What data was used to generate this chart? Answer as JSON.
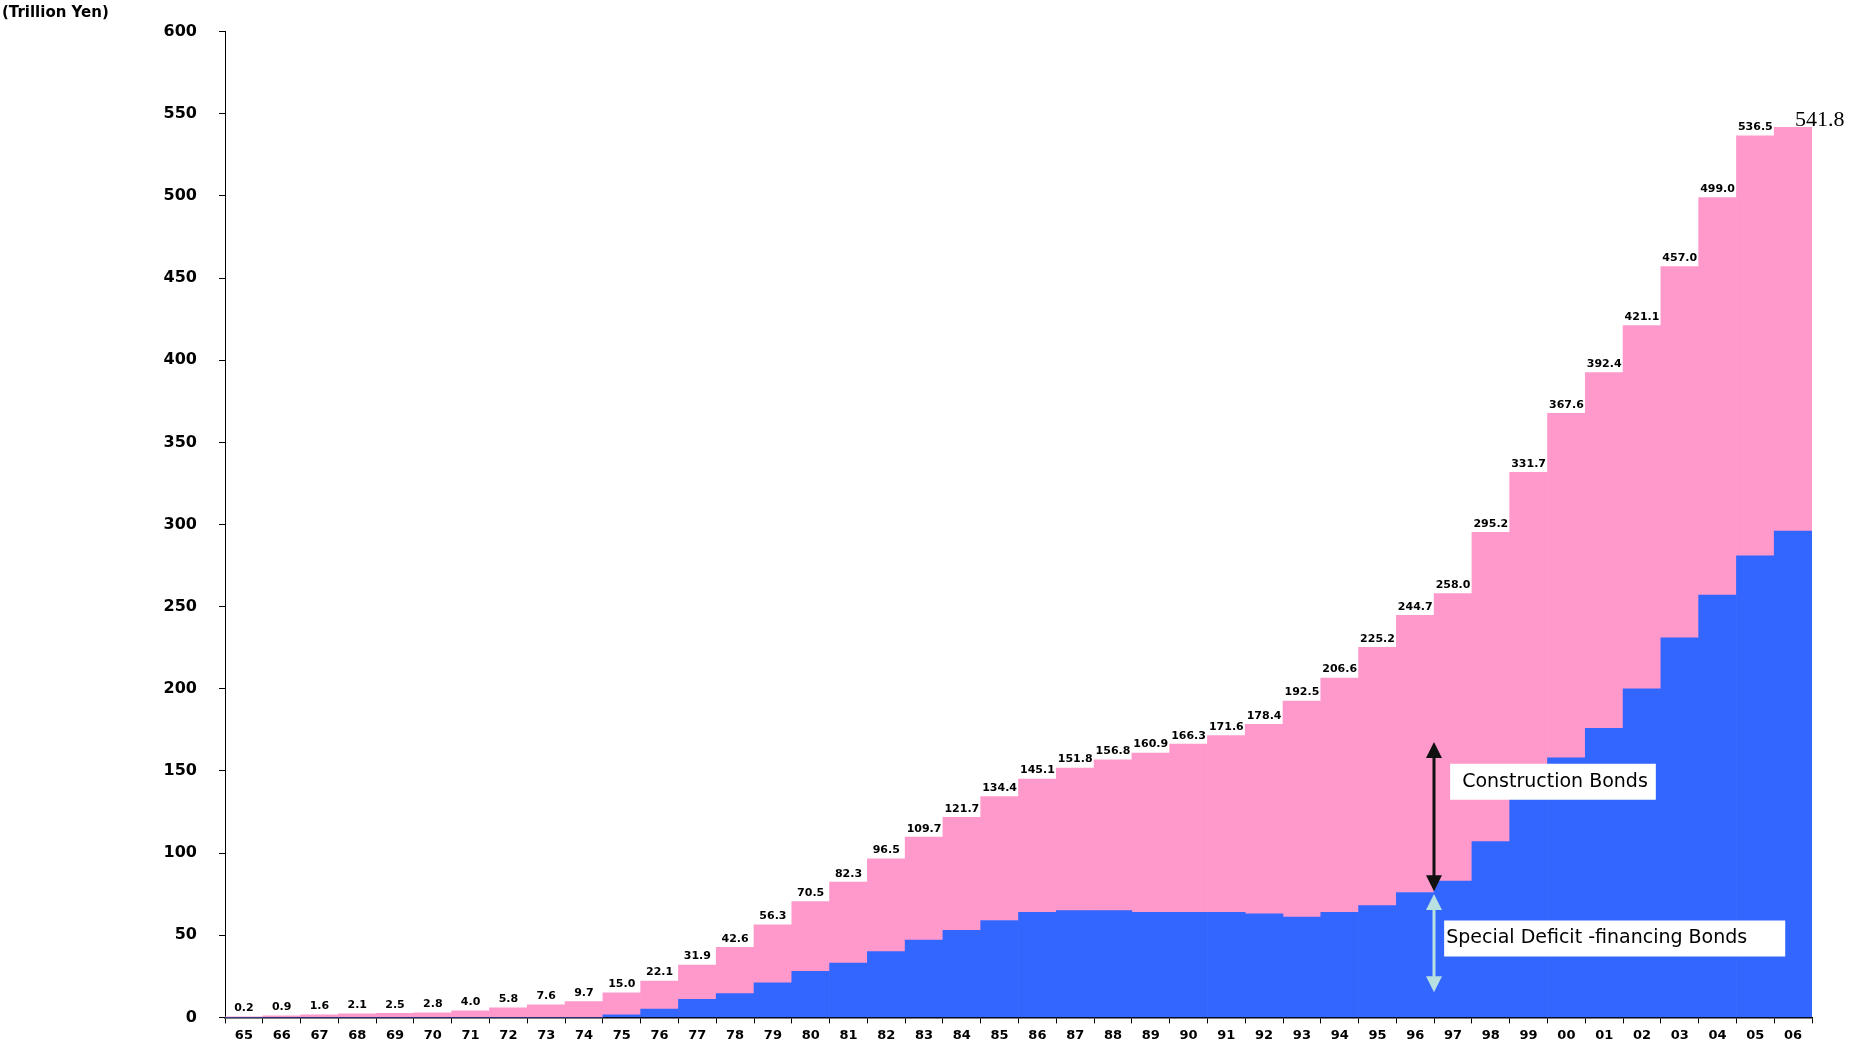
{
  "chart_data": {
    "type": "bar",
    "stacked": true,
    "ylabel": "(Trillion Yen)",
    "categories": [
      "65",
      "66",
      "67",
      "68",
      "69",
      "70",
      "71",
      "72",
      "73",
      "74",
      "75",
      "76",
      "77",
      "78",
      "79",
      "80",
      "81",
      "82",
      "83",
      "84",
      "85",
      "86",
      "87",
      "88",
      "89",
      "90",
      "91",
      "92",
      "93",
      "94",
      "95",
      "96",
      "97",
      "98",
      "99",
      "00",
      "01",
      "02",
      "03",
      "04",
      "05",
      "06"
    ],
    "series": [
      {
        "name": "Special Deficit -financing Bonds",
        "color": "#3366ff",
        "values": [
          0,
          0,
          0,
          0,
          0,
          0,
          0,
          0,
          0,
          0,
          1.5,
          5,
          11,
          14.5,
          21,
          28,
          33,
          40,
          47,
          53,
          59,
          64,
          65,
          65,
          64,
          64,
          64,
          63,
          61,
          64,
          68,
          76,
          83,
          107,
          133,
          158,
          176,
          200,
          231,
          257,
          281,
          296
        ]
      },
      {
        "name": "Construction Bonds",
        "color": "#ff99cc",
        "values": [
          0.2,
          0.9,
          1.6,
          2.1,
          2.5,
          2.8,
          4.0,
          5.8,
          7.6,
          9.7,
          13.5,
          17.1,
          20.9,
          28.1,
          35.3,
          42.5,
          49.3,
          56.5,
          62.7,
          68.7,
          75.4,
          81.1,
          86.8,
          91.8,
          96.9,
          102.3,
          107.6,
          115.4,
          131.5,
          142.6,
          157.2,
          168.7,
          175.0,
          188.2,
          198.7,
          209.6,
          216.4,
          221.1,
          226.0,
          242.0,
          255.5,
          245.8
        ]
      }
    ],
    "totals": [
      "0.2",
      "0.9",
      "1.6",
      "2.1",
      "2.5",
      "2.8",
      "4.0",
      "5.8",
      "7.6",
      "9.7",
      "15.0",
      "22.1",
      "31.9",
      "42.6",
      "56.3",
      "70.5",
      "82.3",
      "96.5",
      "109.7",
      "121.7",
      "134.4",
      "145.1",
      "151.8",
      "156.8",
      "160.9",
      "166.3",
      "171.6",
      "178.4",
      "192.5",
      "206.6",
      "225.2",
      "244.7",
      "258.0",
      "295.2",
      "331.7",
      "367.6",
      "392.4",
      "421.1",
      "457.0",
      "499.0",
      "536.5",
      "541.8"
    ],
    "ylim": [
      0,
      600
    ],
    "yticks": [
      0,
      50,
      100,
      150,
      200,
      250,
      300,
      350,
      400,
      450,
      500,
      550,
      600
    ],
    "grid": false,
    "legend": false
  }
}
